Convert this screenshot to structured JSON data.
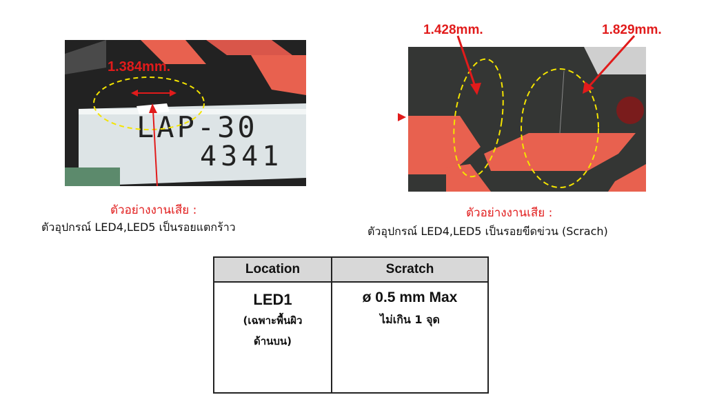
{
  "photo_left": {
    "measurement": "1.384mm.",
    "component_text_line1": "LAP-30",
    "component_text_line2": "4341"
  },
  "photo_right": {
    "measurement_a": "1.428mm.",
    "measurement_b": "1.829mm."
  },
  "caption_left": {
    "title": "ตัวอย่างงานเสีย  :",
    "description": "ตัวอุปกรณ์ LED4,LED5 เป็นรอยแตกร้าว"
  },
  "caption_right": {
    "title": "ตัวอย่างงานเสีย  :",
    "description": "ตัวอุปกรณ์ LED4,LED5  เป็นรอยขีดข่วน (Scrach)"
  },
  "table": {
    "headers": [
      "Location",
      "Scratch"
    ],
    "location_main": "LED1",
    "location_sub_1": "(เฉพาะพื้นผิว",
    "location_sub_2": "ด้านบน)",
    "spec_main": "ø 0.5 mm Max",
    "spec_sub": "ไม่เกิน 1 จุด"
  },
  "colors": {
    "annotation_red": "#e11b1b",
    "ellipse_yellow": "#f4e400",
    "led_segment": "#e8614f"
  }
}
